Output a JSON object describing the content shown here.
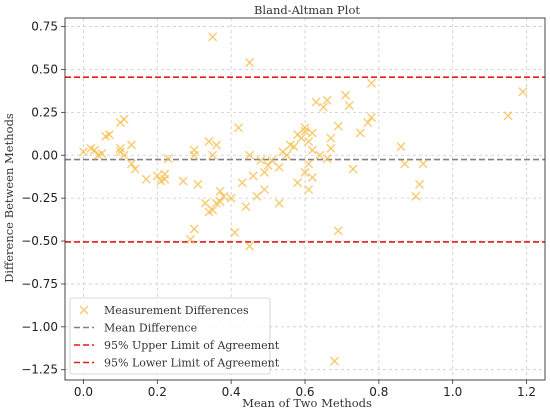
{
  "chart_data": {
    "type": "scatter",
    "title": "Bland-Altman Plot",
    "xlabel": "Mean of Two Methods",
    "ylabel": "Difference Between Methods",
    "xlim": [
      -0.05,
      1.25
    ],
    "ylim": [
      -1.31,
      0.8
    ],
    "x_ticks": [
      0.0,
      0.2,
      0.4,
      0.6,
      0.8,
      1.0,
      1.2
    ],
    "x_tick_labels": [
      "0.0",
      "0.2",
      "0.4",
      "0.6",
      "0.8",
      "1.0",
      "1.2"
    ],
    "y_ticks": [
      0.75,
      0.5,
      0.25,
      0.0,
      -0.25,
      -0.5,
      -0.75,
      -1.0,
      -1.25
    ],
    "y_tick_labels": [
      "0.75",
      "0.50",
      "0.25",
      "0.00",
      "−0.25",
      "−0.50",
      "−0.75",
      "−1.00",
      "−1.25"
    ],
    "grid": true,
    "legend_position": "lower-left",
    "colors": {
      "points": "#f5b942",
      "mean_line": "#808080",
      "limit_lines": "#e41a1c",
      "grid": "#cccccc"
    },
    "series": [
      {
        "name": "Measurement Differences",
        "marker": "x",
        "points": [
          [
            0.0,
            0.02
          ],
          [
            0.02,
            0.04
          ],
          [
            0.03,
            0.03
          ],
          [
            0.04,
            0.0
          ],
          [
            0.05,
            0.01
          ],
          [
            0.06,
            0.11
          ],
          [
            0.07,
            0.12
          ],
          [
            0.1,
            0.19
          ],
          [
            0.11,
            0.21
          ],
          [
            0.1,
            0.04
          ],
          [
            0.1,
            0.02
          ],
          [
            0.11,
            0.0
          ],
          [
            0.13,
            0.06
          ],
          [
            0.13,
            -0.05
          ],
          [
            0.14,
            -0.08
          ],
          [
            0.17,
            -0.14
          ],
          [
            0.2,
            -0.12
          ],
          [
            0.21,
            -0.15
          ],
          [
            0.22,
            -0.14
          ],
          [
            0.23,
            -0.02
          ],
          [
            0.22,
            -0.11
          ],
          [
            0.27,
            -0.15
          ],
          [
            0.29,
            -0.49
          ],
          [
            0.3,
            -0.43
          ],
          [
            0.3,
            0.03
          ],
          [
            0.3,
            0.0
          ],
          [
            0.31,
            -0.17
          ],
          [
            0.33,
            -0.28
          ],
          [
            0.34,
            -0.33
          ],
          [
            0.34,
            0.08
          ],
          [
            0.35,
            0.69
          ],
          [
            0.35,
            0.0
          ],
          [
            0.35,
            -0.32
          ],
          [
            0.36,
            -0.28
          ],
          [
            0.37,
            -0.21
          ],
          [
            0.36,
            0.06
          ],
          [
            0.37,
            -0.27
          ],
          [
            0.38,
            -0.24
          ],
          [
            0.4,
            -0.25
          ],
          [
            0.41,
            -0.45
          ],
          [
            0.42,
            0.16
          ],
          [
            0.43,
            -0.16
          ],
          [
            0.44,
            -0.3
          ],
          [
            0.45,
            0.54
          ],
          [
            0.45,
            0.0
          ],
          [
            0.45,
            -0.53
          ],
          [
            0.46,
            -0.12
          ],
          [
            0.47,
            -0.24
          ],
          [
            0.48,
            -0.03
          ],
          [
            0.49,
            -0.1
          ],
          [
            0.49,
            -0.2
          ],
          [
            0.5,
            -0.06
          ],
          [
            0.51,
            -0.03
          ],
          [
            0.53,
            -0.07
          ],
          [
            0.53,
            -0.28
          ],
          [
            0.54,
            0.02
          ],
          [
            0.55,
            0.0
          ],
          [
            0.56,
            0.06
          ],
          [
            0.57,
            0.05
          ],
          [
            0.58,
            -0.16
          ],
          [
            0.58,
            0.12
          ],
          [
            0.59,
            0.1
          ],
          [
            0.6,
            0.16
          ],
          [
            0.6,
            0.14
          ],
          [
            0.6,
            -0.1
          ],
          [
            0.61,
            0.08
          ],
          [
            0.61,
            -0.05
          ],
          [
            0.61,
            -0.2
          ],
          [
            0.62,
            0.03
          ],
          [
            0.62,
            0.13
          ],
          [
            0.62,
            -0.13
          ],
          [
            0.63,
            0.31
          ],
          [
            0.64,
            0.0
          ],
          [
            0.65,
            0.28
          ],
          [
            0.66,
            0.32
          ],
          [
            0.66,
            -0.02
          ],
          [
            0.67,
            0.1
          ],
          [
            0.67,
            0.04
          ],
          [
            0.68,
            -1.2
          ],
          [
            0.69,
            -0.44
          ],
          [
            0.69,
            0.17
          ],
          [
            0.71,
            0.35
          ],
          [
            0.72,
            0.29
          ],
          [
            0.73,
            -0.08
          ],
          [
            0.75,
            0.13
          ],
          [
            0.77,
            0.19
          ],
          [
            0.78,
            0.42
          ],
          [
            0.78,
            0.22
          ],
          [
            0.86,
            0.05
          ],
          [
            0.87,
            -0.05
          ],
          [
            0.9,
            -0.24
          ],
          [
            0.91,
            -0.17
          ],
          [
            0.92,
            -0.05
          ],
          [
            1.15,
            0.23
          ],
          [
            1.19,
            0.37
          ]
        ]
      },
      {
        "name": "Mean Difference",
        "type": "hline",
        "y": -0.025
      },
      {
        "name": "95% Upper Limit of Agreement",
        "type": "hline",
        "y": 0.455
      },
      {
        "name": "95% Lower Limit of Agreement",
        "type": "hline",
        "y": -0.505
      }
    ]
  }
}
